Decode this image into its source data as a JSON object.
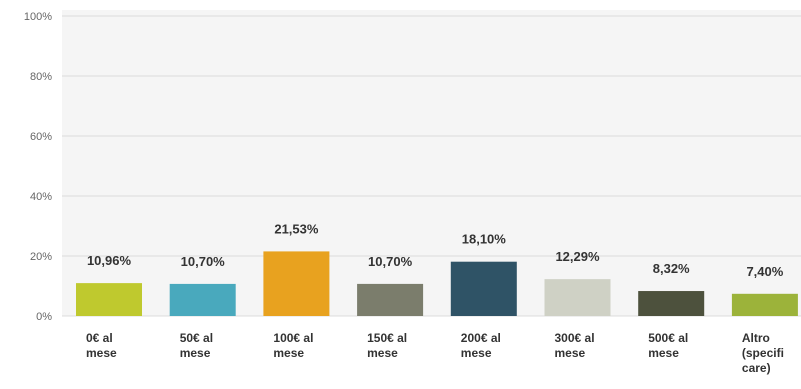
{
  "chart_data": {
    "type": "bar",
    "categories": [
      [
        "0€ al",
        "mese"
      ],
      [
        "50€ al",
        "mese"
      ],
      [
        "100€ al",
        "mese"
      ],
      [
        "150€ al",
        "mese"
      ],
      [
        "200€ al",
        "mese"
      ],
      [
        "300€ al",
        "mese"
      ],
      [
        "500€ al",
        "mese"
      ],
      [
        "Altro",
        "(specifi",
        "care)"
      ]
    ],
    "values": [
      10.96,
      10.7,
      21.53,
      10.7,
      18.1,
      12.29,
      8.32,
      7.4
    ],
    "data_labels": [
      "10,96%",
      "10,70%",
      "21,53%",
      "10,70%",
      "18,10%",
      "12,29%",
      "8,32%",
      "7,40%"
    ],
    "colors": [
      "#bfc92e",
      "#49a9bd",
      "#e8a21f",
      "#7b7d6c",
      "#2f5366",
      "#cfd1c5",
      "#4d513d",
      "#9cb33a"
    ],
    "ylim": [
      0,
      100
    ],
    "yticks": [
      0,
      20,
      40,
      60,
      80,
      100
    ],
    "ytick_labels": [
      "0%",
      "20%",
      "40%",
      "60%",
      "80%",
      "100%"
    ],
    "grid": true,
    "title": "",
    "xlabel": "",
    "ylabel": ""
  }
}
